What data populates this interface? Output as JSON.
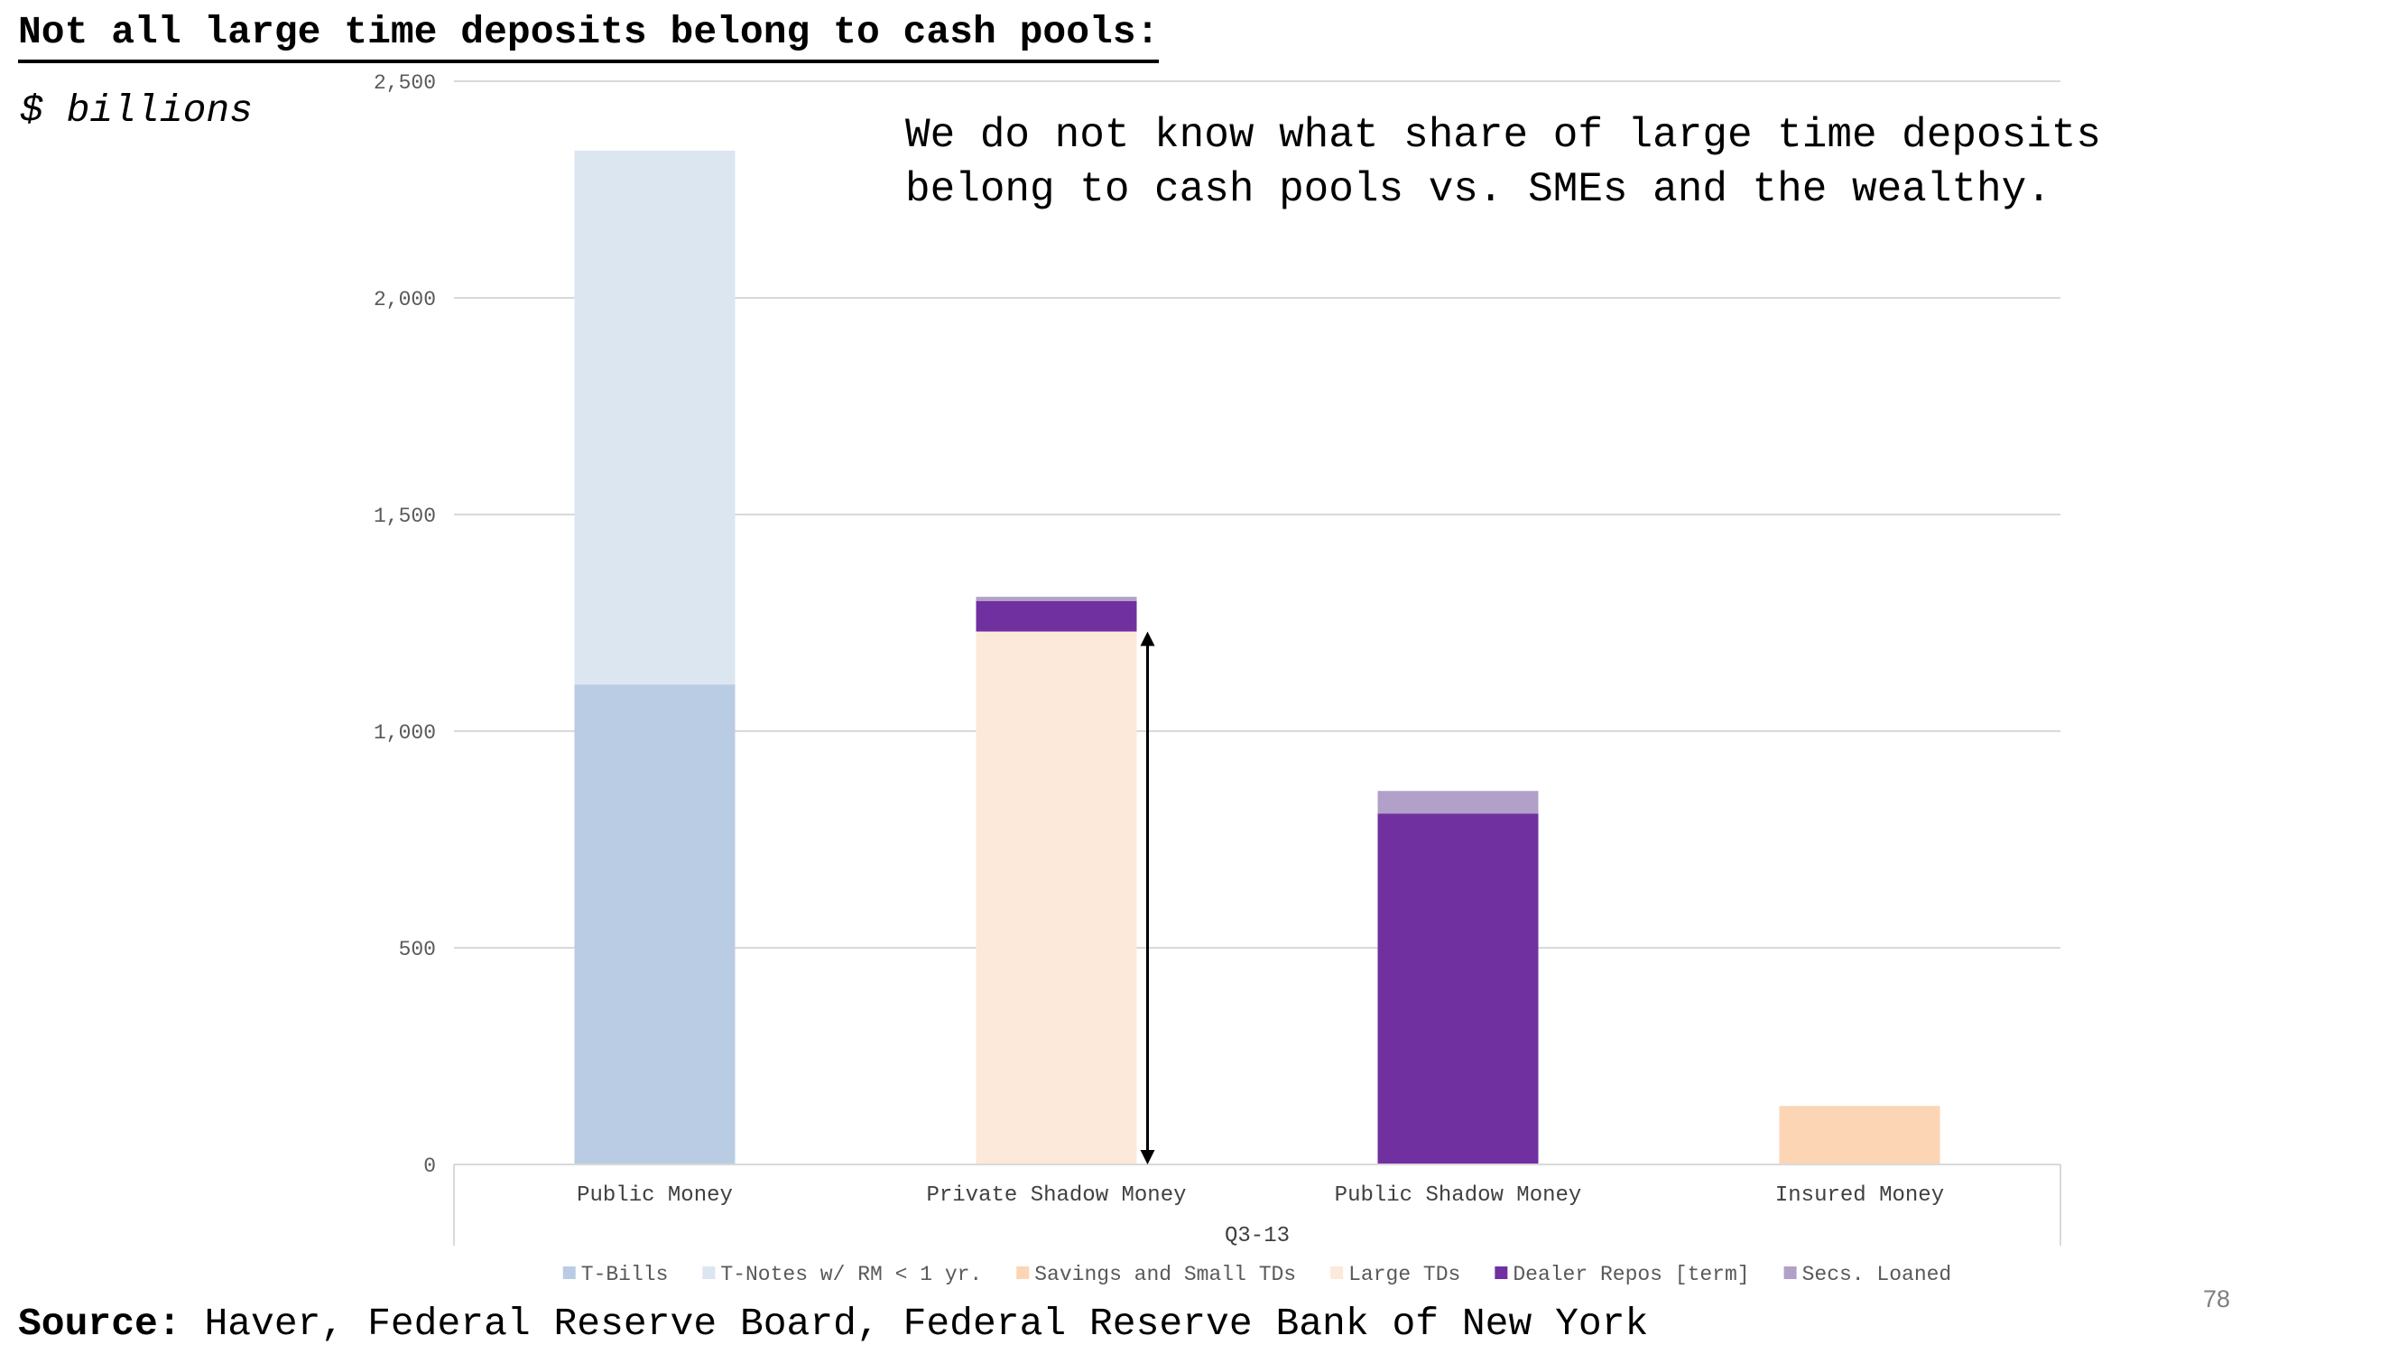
{
  "title": "Not all large time deposits belong to cash pools:",
  "units_label": "$ billions",
  "annotation": {
    "line1": "We do not know what share of large time deposits",
    "line2": "belong to cash pools vs. SMEs and the wealthy."
  },
  "source": {
    "label": "Source:",
    "text": " Haver, Federal Reserve Board, Federal Reserve Bank of New York"
  },
  "page_number": "78",
  "chart_data": {
    "type": "bar",
    "stacked": true,
    "categories": [
      "Public Money",
      "Private Shadow Money",
      "Public Shadow Money",
      "Insured Money"
    ],
    "group_label": "Q3-13",
    "ylim": [
      0,
      2500
    ],
    "yticks": [
      0,
      500,
      1000,
      1500,
      2000,
      2500
    ],
    "ytick_labels": [
      "0",
      "500",
      "1,000",
      "1,500",
      "2,000",
      "2,500"
    ],
    "grid": true,
    "legend_position": "bottom",
    "series": [
      {
        "name": "T-Bills",
        "color": "#b9cce4",
        "values": [
          1108,
          0,
          0,
          0
        ]
      },
      {
        "name": "T-Notes w/ RM < 1 yr.",
        "color": "#dce6f1",
        "values": [
          1232,
          0,
          0,
          0
        ]
      },
      {
        "name": "Savings and Small TDs",
        "color": "#fcd5b4",
        "values": [
          0,
          0,
          0,
          135
        ]
      },
      {
        "name": "Large TDs",
        "color": "#fde9d9",
        "values": [
          0,
          1230,
          0,
          0
        ]
      },
      {
        "name": "Dealer Repos [term]",
        "color": "#7030a0",
        "values": [
          0,
          70,
          810,
          0
        ]
      },
      {
        "name": "Secs. Loaned",
        "color": "#b1a0c7",
        "values": [
          0,
          10,
          52,
          0
        ]
      }
    ],
    "arrow": {
      "category": "Private Shadow Money",
      "from": 0,
      "to": 1230
    }
  }
}
